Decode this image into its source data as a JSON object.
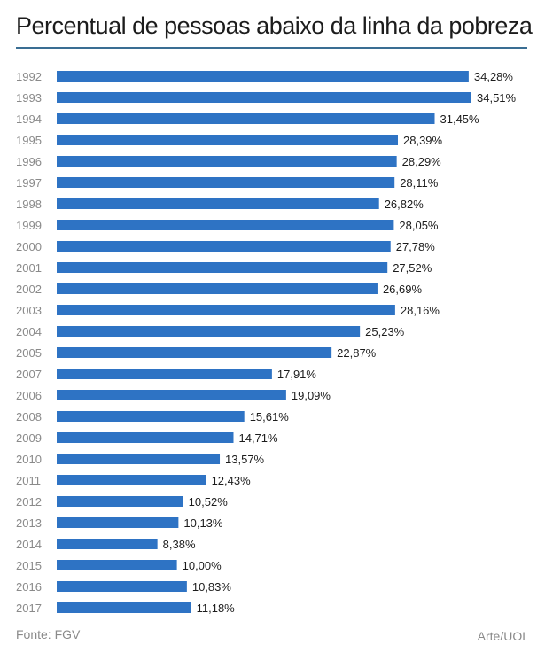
{
  "header": {
    "title": "Percentual de pessoas abaixo da linha da pobreza"
  },
  "footer": {
    "source": "Fonte: FGV",
    "credit": "Arte/UOL"
  },
  "colors": {
    "bar": "#2e73c4",
    "rule": "#3a6e93",
    "year_text": "#8a8a8a",
    "value_text": "#1c1c1c"
  },
  "chart_data": {
    "type": "bar",
    "orientation": "horizontal",
    "title": "Percentual de pessoas abaixo da linha da pobreza",
    "categories": [
      "1992",
      "1993",
      "1994",
      "1995",
      "1996",
      "1997",
      "1998",
      "1999",
      "2000",
      "2001",
      "2002",
      "2003",
      "2004",
      "2005",
      "2007",
      "2006",
      "2008",
      "2009",
      "2010",
      "2011",
      "2012",
      "2013",
      "2014",
      "2015",
      "2016",
      "2017"
    ],
    "values": [
      34.28,
      34.51,
      31.45,
      28.39,
      28.29,
      28.11,
      26.82,
      28.05,
      27.78,
      27.52,
      26.69,
      28.16,
      25.23,
      22.87,
      17.91,
      19.09,
      15.61,
      14.71,
      13.57,
      12.43,
      10.52,
      10.13,
      8.38,
      10.0,
      10.83,
      11.18
    ],
    "labels": [
      "34,28%",
      "34,51%",
      "31,45%",
      "28,39%",
      "28,29%",
      "28,11%",
      "26,82%",
      "28,05%",
      "27,78%",
      "27,52%",
      "26,69%",
      "28,16%",
      "25,23%",
      "22,87%",
      "17,91%",
      "19,09%",
      "15,61%",
      "14,71%",
      "13,57%",
      "12,43%",
      "10,52%",
      "10,13%",
      "8,38%",
      "10,00%",
      "10,83%",
      "11,18%"
    ],
    "xlim": [
      0,
      34.51
    ],
    "grid": false,
    "legend": "none"
  }
}
